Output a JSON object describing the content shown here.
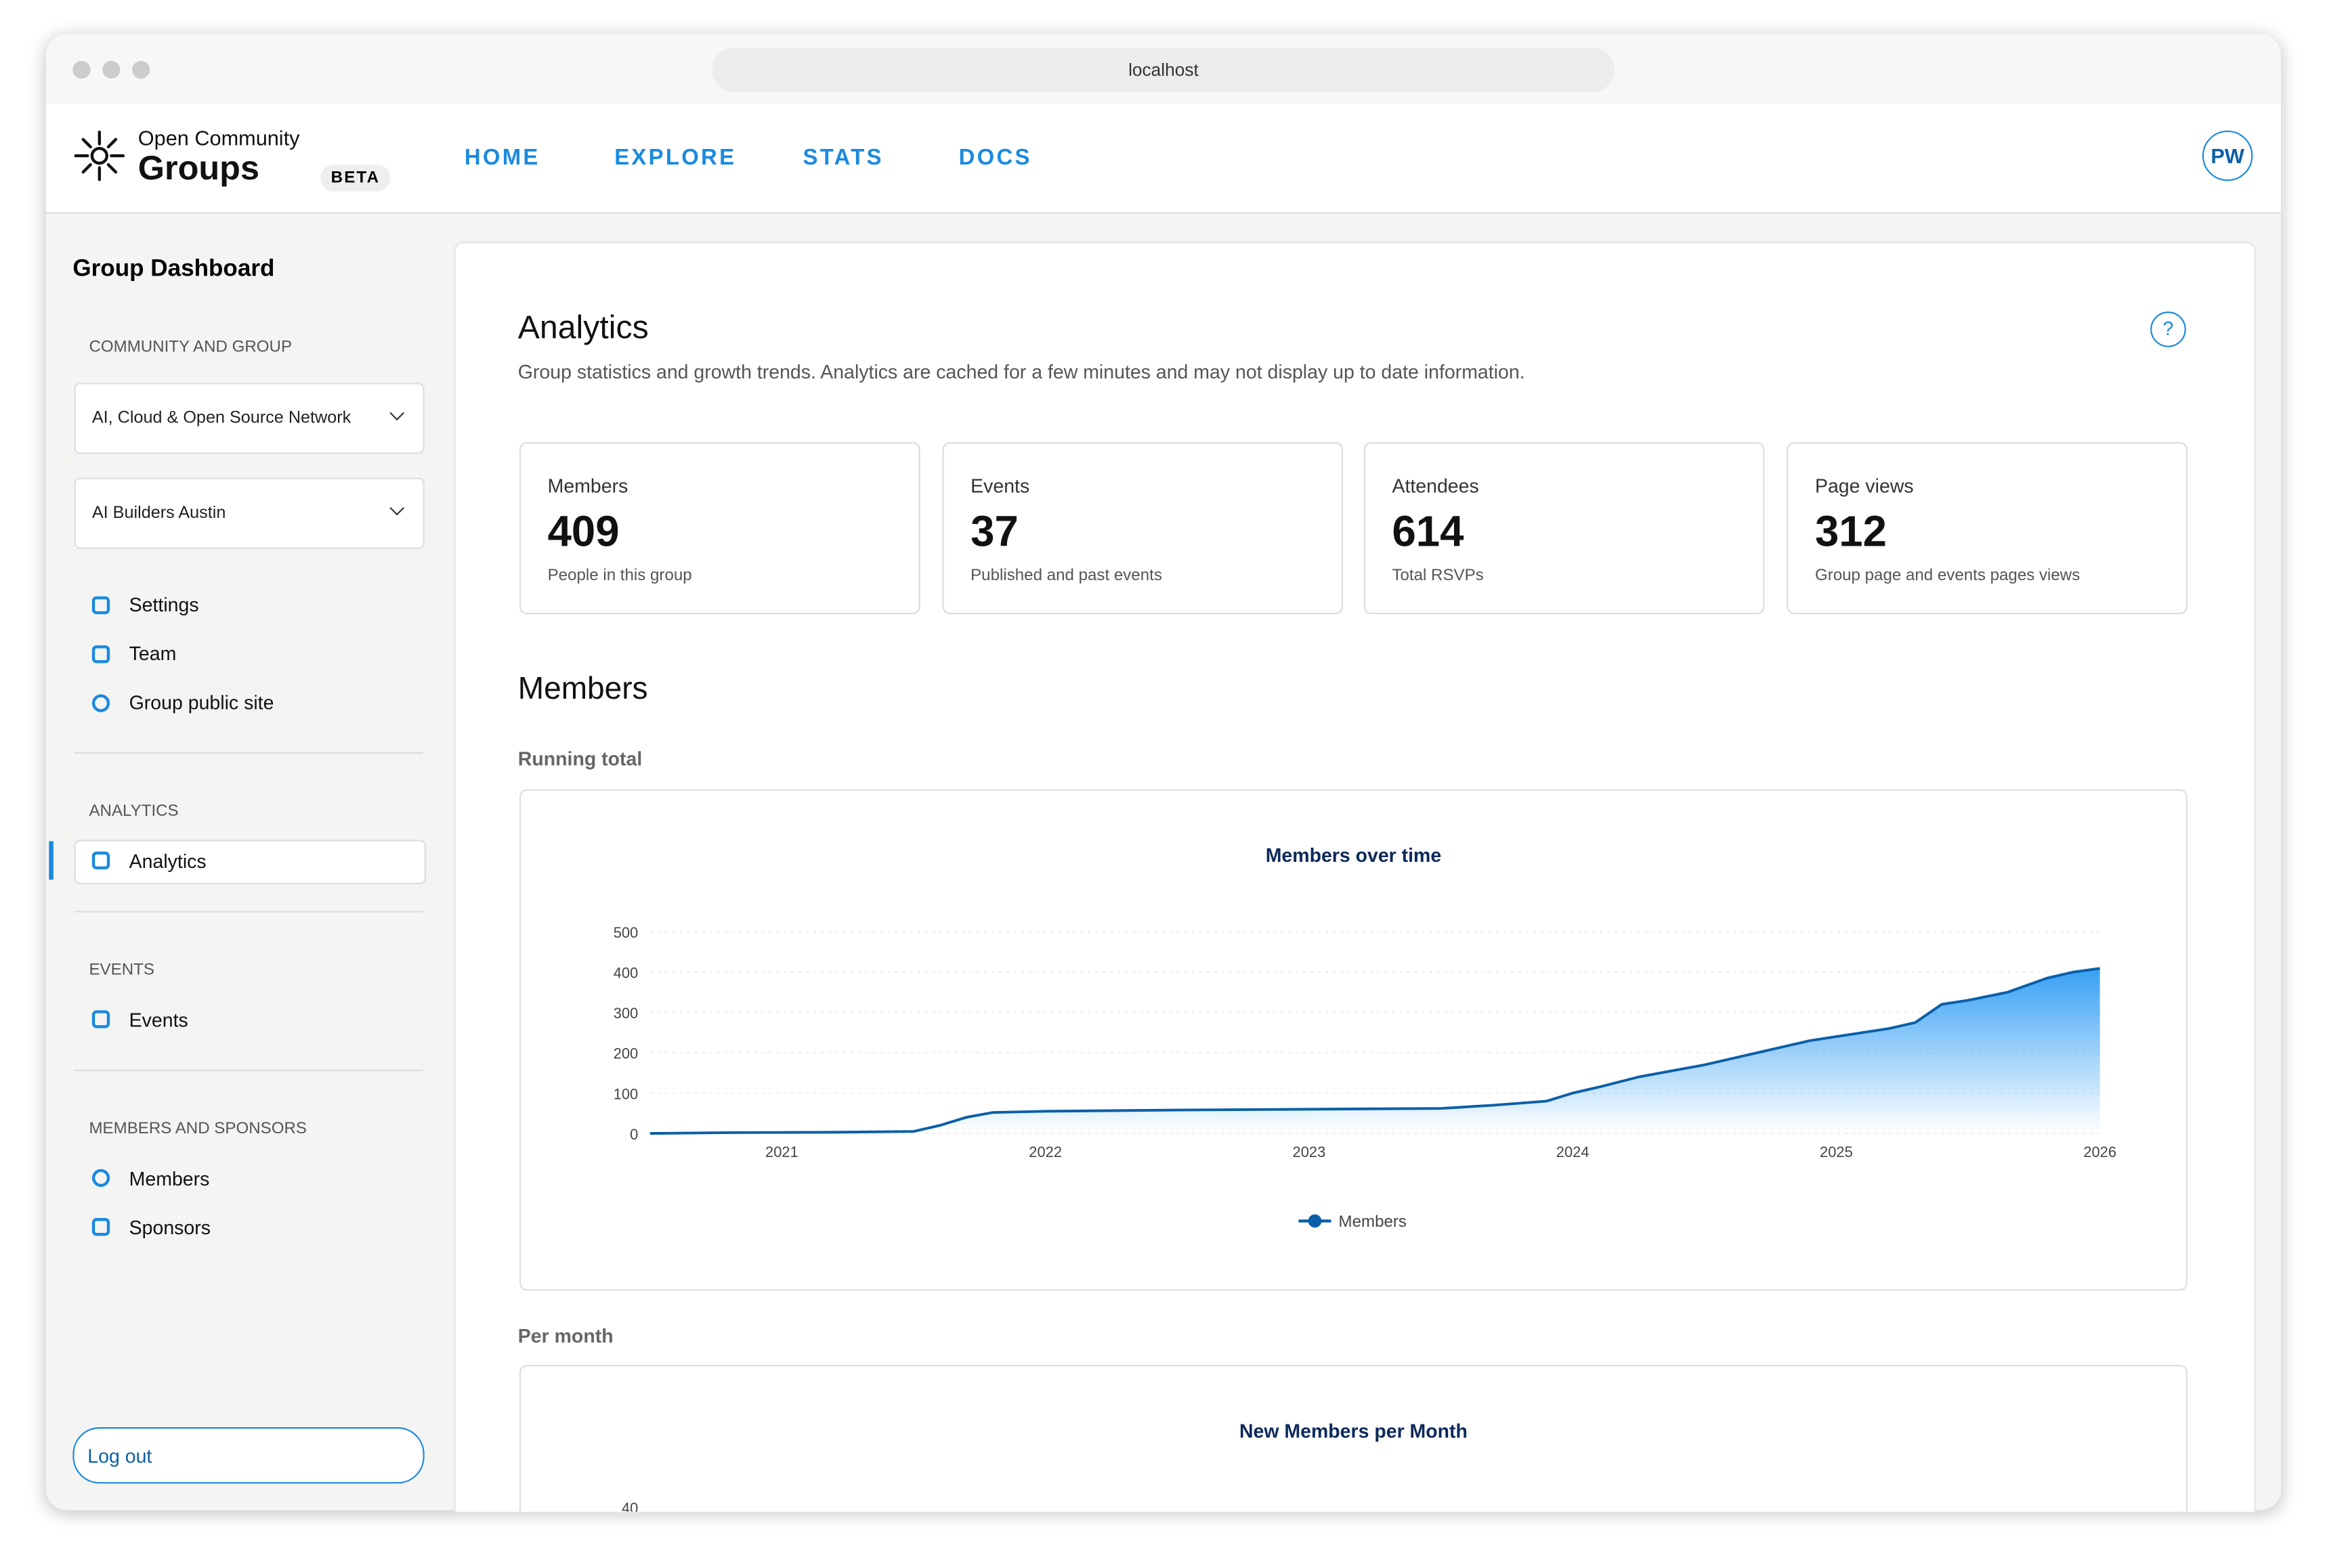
{
  "browser": {
    "url": "localhost"
  },
  "brand": {
    "top": "Open Community",
    "bottom": "Groups",
    "badge": "BETA"
  },
  "nav": [
    "HOME",
    "EXPLORE",
    "STATS",
    "DOCS"
  ],
  "user": "PW",
  "sidebar": {
    "title": "Group Dashboard",
    "community_heading": "COMMUNITY AND GROUP",
    "community": "AI, Cloud & Open Source Network",
    "group": "AI Builders Austin",
    "links": [
      "Settings",
      "Team",
      "Group public site"
    ],
    "analytics_heading": "ANALYTICS",
    "analytics": "Analytics",
    "events_heading": "EVENTS",
    "events": "Events",
    "members_heading": "MEMBERS AND SPONSORS",
    "members": "Members",
    "sponsors": "Sponsors",
    "logout": "Log out"
  },
  "page": {
    "title": "Analytics",
    "subtitle": "Group statistics and growth trends. Analytics are cached for a few minutes and may not display up to date information.",
    "cards": [
      {
        "label": "Members",
        "value": "409",
        "note": "People in this group"
      },
      {
        "label": "Events",
        "value": "37",
        "note": "Published and past events"
      },
      {
        "label": "Attendees",
        "value": "614",
        "note": "Total RSVPs"
      },
      {
        "label": "Page views",
        "value": "312",
        "note": "Group page and events pages views"
      }
    ],
    "section": "Members",
    "running": "Running total",
    "per_month": "Per month"
  },
  "chart_data": [
    {
      "type": "area",
      "title": "Members over time",
      "x": [
        2020.5,
        2020.8,
        2021.2,
        2021.5,
        2021.6,
        2021.7,
        2021.8,
        2022,
        2022.5,
        2023,
        2023.5,
        2023.7,
        2023.9,
        2024,
        2024.1,
        2024.25,
        2024.5,
        2024.7,
        2024.9,
        2025,
        2025.2,
        2025.3,
        2025.4,
        2025.5,
        2025.65,
        2025.8,
        2025.9,
        2026
      ],
      "series": [
        {
          "name": "Members",
          "color": "#0b5fa8",
          "values": [
            0,
            2,
            3,
            5,
            20,
            40,
            52,
            55,
            58,
            60,
            62,
            70,
            80,
            100,
            115,
            140,
            170,
            200,
            230,
            240,
            260,
            275,
            320,
            330,
            350,
            385,
            400,
            409
          ]
        }
      ],
      "xlim": [
        2020.5,
        2026
      ],
      "xticks": [
        2021,
        2022,
        2023,
        2024,
        2025,
        2026
      ],
      "ylim": [
        0,
        500
      ],
      "yticks": [
        0,
        100,
        200,
        300,
        400,
        500
      ],
      "grid": true
    },
    {
      "type": "bar",
      "title": "New Members per Month",
      "ylim": [
        0,
        40
      ],
      "yticks": [
        40
      ]
    }
  ]
}
